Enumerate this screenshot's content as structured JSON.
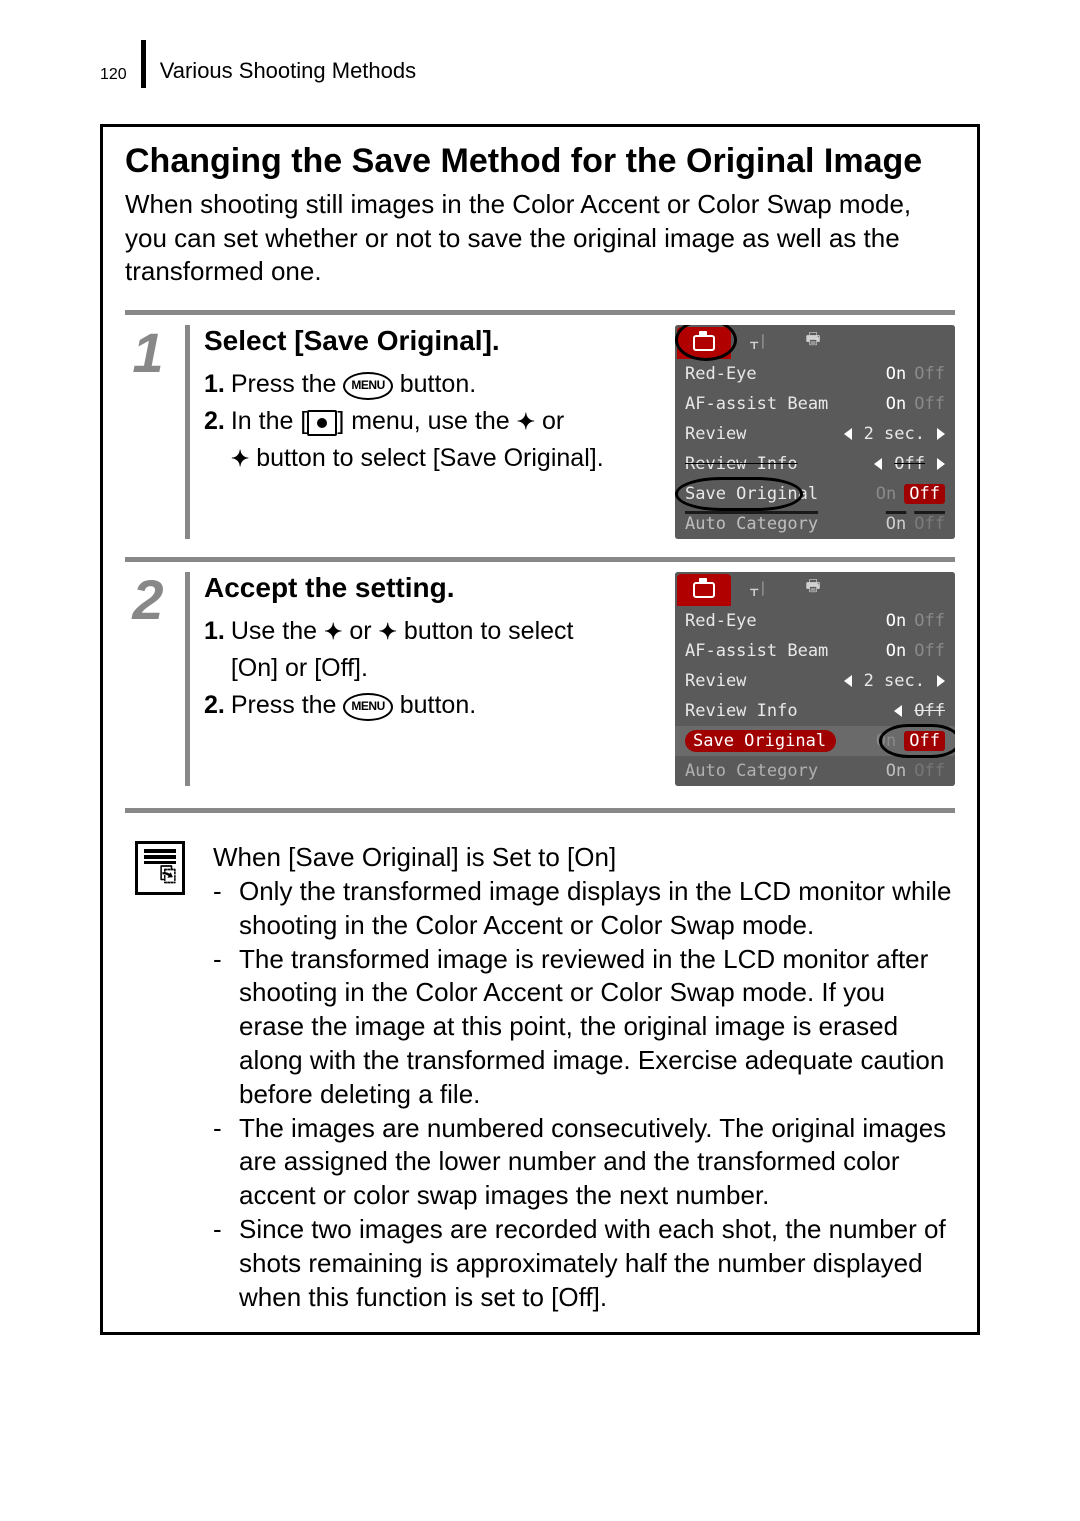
{
  "page": {
    "number": "120",
    "header": "Various Shooting Methods"
  },
  "main": {
    "title": "Changing the Save Method for the Original Image",
    "intro": "When shooting still images in the Color Accent or Color Swap mode, you can set whether or not to save the original image as well as the transformed one."
  },
  "steps": [
    {
      "num": "1",
      "title": "Select [Save Original].",
      "sub": [
        {
          "n": "1.",
          "before": "Press the ",
          "icon": "menu-pill",
          "after": " button."
        },
        {
          "n": "2.",
          "before": "In the [",
          "icon": "rec-icon",
          "after": "] menu, use the ",
          "icon2": "arrow-up",
          "after2": " or"
        },
        {
          "n": "",
          "before": "",
          "icon": "arrow-down",
          "after": " button to select [Save Original]."
        }
      ],
      "menu": {
        "activeTab": 0,
        "rows": [
          {
            "label": "Red-Eye",
            "type": "onoff",
            "on": "On",
            "off": "Off",
            "sel": false,
            "arrows": false
          },
          {
            "label": "AF-assist Beam",
            "type": "onoff",
            "on": "On",
            "off": "Off",
            "sel": false,
            "arrows": false
          },
          {
            "label": "Review",
            "type": "val",
            "val": "2 sec.",
            "arrows": "both"
          },
          {
            "label": "Review Info",
            "type": "val",
            "val": "Off",
            "arrows": "both",
            "strike": true
          },
          {
            "label": "Save Original",
            "type": "onoff",
            "on": "On",
            "off": "Off",
            "sel": true,
            "ring": "label",
            "offPill": true
          },
          {
            "label": "Auto Category",
            "type": "onoff",
            "on": "On",
            "off": "Off",
            "sel": false,
            "dim": true
          }
        ],
        "ringTab": true
      }
    },
    {
      "num": "2",
      "title": "Accept the setting.",
      "sub": [
        {
          "n": "1.",
          "before": "Use the ",
          "icon": "arrow-left",
          "after": " or ",
          "icon2": "arrow-right",
          "after2": " button to select"
        },
        {
          "n": "",
          "before": "[On] or [Off]."
        },
        {
          "n": "2.",
          "before": "Press the ",
          "icon": "menu-pill",
          "after": " button."
        }
      ],
      "menu": {
        "activeTab": 0,
        "rows": [
          {
            "label": "Red-Eye",
            "type": "onoff",
            "on": "On",
            "off": "Off",
            "sel": false
          },
          {
            "label": "AF-assist Beam",
            "type": "onoff",
            "on": "On",
            "off": "Off",
            "sel": false
          },
          {
            "label": "Review",
            "type": "val",
            "val": "2 sec.",
            "arrows": "both"
          },
          {
            "label": "Review Info",
            "type": "val",
            "val": "Off",
            "arrows": "left",
            "strike": true
          },
          {
            "label": "Save Original",
            "type": "onoff",
            "on": "On",
            "off": "Off",
            "sel": true,
            "ring": "value",
            "offPill": true,
            "hlRow": true
          },
          {
            "label": "Auto Category",
            "type": "onoff",
            "on": "On",
            "off": "Off",
            "sel": false,
            "dim": true
          }
        ]
      }
    }
  ],
  "notes": {
    "title": "When [Save Original] is Set to [On]",
    "items": [
      "Only the transformed image displays in the LCD monitor while shooting in the Color Accent or Color Swap mode.",
      "The transformed image is reviewed in the LCD monitor after shooting in the Color Accent or Color Swap mode. If you erase the image at this point, the original image is erased along with the transformed image. Exercise adequate caution before deleting a file.",
      "The images are numbered consecutively. The original images are assigned the lower number and the transformed color accent or color swap images the next number.",
      "Since two images are recorded with each shot, the number of shots remaining is approximately half the number displayed when this function is set to [Off]."
    ]
  },
  "iconText": {
    "menuLabel": "MENU"
  },
  "colors": {
    "grey": "#888888",
    "menuBg": "#5a5a5a",
    "menuRed": "#a00000"
  }
}
